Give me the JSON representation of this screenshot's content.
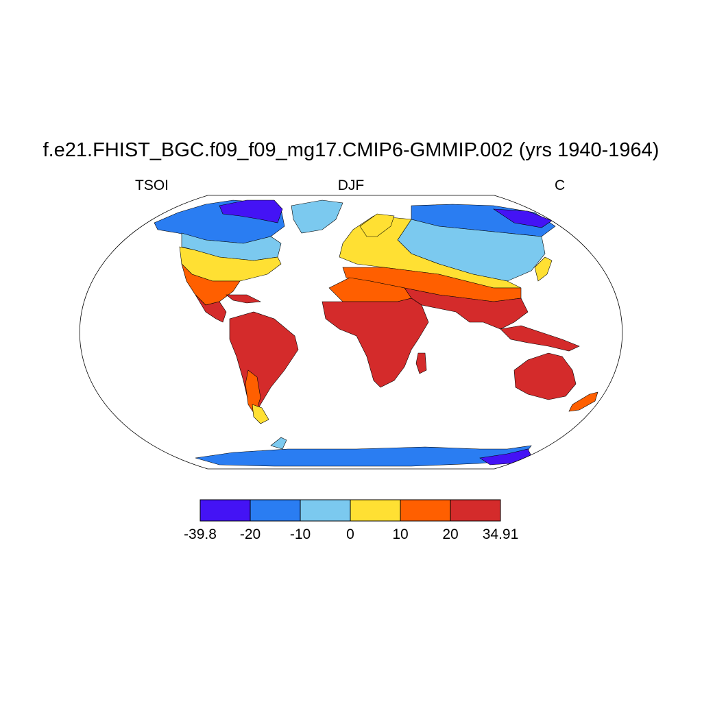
{
  "title": "f.e21.FHIST_BGC.f09_f09_mg17.CMIP6-GMMIP.002 (yrs 1940-1964)",
  "left_label": "TSOI",
  "center_label": "DJF",
  "right_label": "C",
  "colors": {
    "ocean": "#ffffff",
    "outline": "#000000",
    "c1": "#4413f5",
    "c2": "#2a7df2",
    "c3": "#7bc9ef",
    "c4": "#ffe033",
    "c5": "#ff5f00",
    "c6": "#d42b2b"
  },
  "colorbar": {
    "bins": [
      "#4413f5",
      "#2a7df2",
      "#7bc9ef",
      "#ffe033",
      "#ff5f00",
      "#d42b2b"
    ],
    "labels": [
      "-39.8",
      "-20",
      "-10",
      "0",
      "10",
      "20",
      "34.91"
    ]
  }
}
